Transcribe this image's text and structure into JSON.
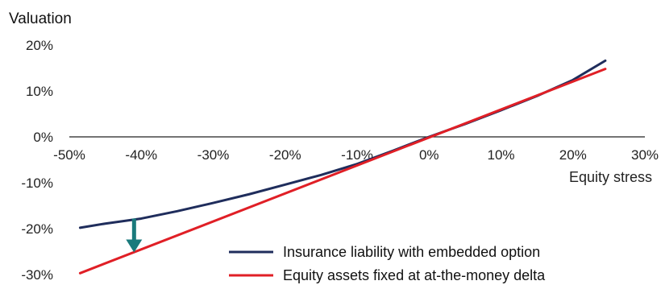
{
  "chart_data": {
    "type": "line",
    "title": "",
    "ylabel": "Valuation",
    "xlabel": "Equity stress",
    "xlim": [
      -50,
      30
    ],
    "ylim": [
      -30,
      20
    ],
    "x_ticks": [
      "-50%",
      "-40%",
      "-30%",
      "-20%",
      "-10%",
      "0%",
      "10%",
      "20%",
      "30%"
    ],
    "y_ticks": [
      "20%",
      "10%",
      "0%",
      "-10%",
      "-20%",
      "-30%"
    ],
    "series": [
      {
        "name": "Insurance liability with embedded option",
        "color": "#1f2d5c",
        "points": [
          [
            -48.5,
            -19.8
          ],
          [
            -45,
            -18.9
          ],
          [
            -40,
            -17.8
          ],
          [
            -35,
            -16.2
          ],
          [
            -30,
            -14.4
          ],
          [
            -25,
            -12.5
          ],
          [
            -20,
            -10.4
          ],
          [
            -15,
            -8.3
          ],
          [
            -10,
            -5.9
          ],
          [
            -5,
            -3.0
          ],
          [
            0,
            0.0
          ],
          [
            5,
            2.8
          ],
          [
            10,
            5.8
          ],
          [
            15,
            8.9
          ],
          [
            20,
            12.4
          ],
          [
            24.5,
            16.6
          ]
        ]
      },
      {
        "name": "Equity assets fixed at at-the-money delta",
        "color": "#e01f26",
        "points": [
          [
            -48.5,
            -29.7
          ],
          [
            24.5,
            14.8
          ]
        ]
      }
    ],
    "annotation": {
      "type": "arrow",
      "color": "#1a7a7c",
      "x": -41,
      "y_from": -17.8,
      "y_to": -25.0
    },
    "grid": false,
    "legend_position": "bottom-right"
  }
}
